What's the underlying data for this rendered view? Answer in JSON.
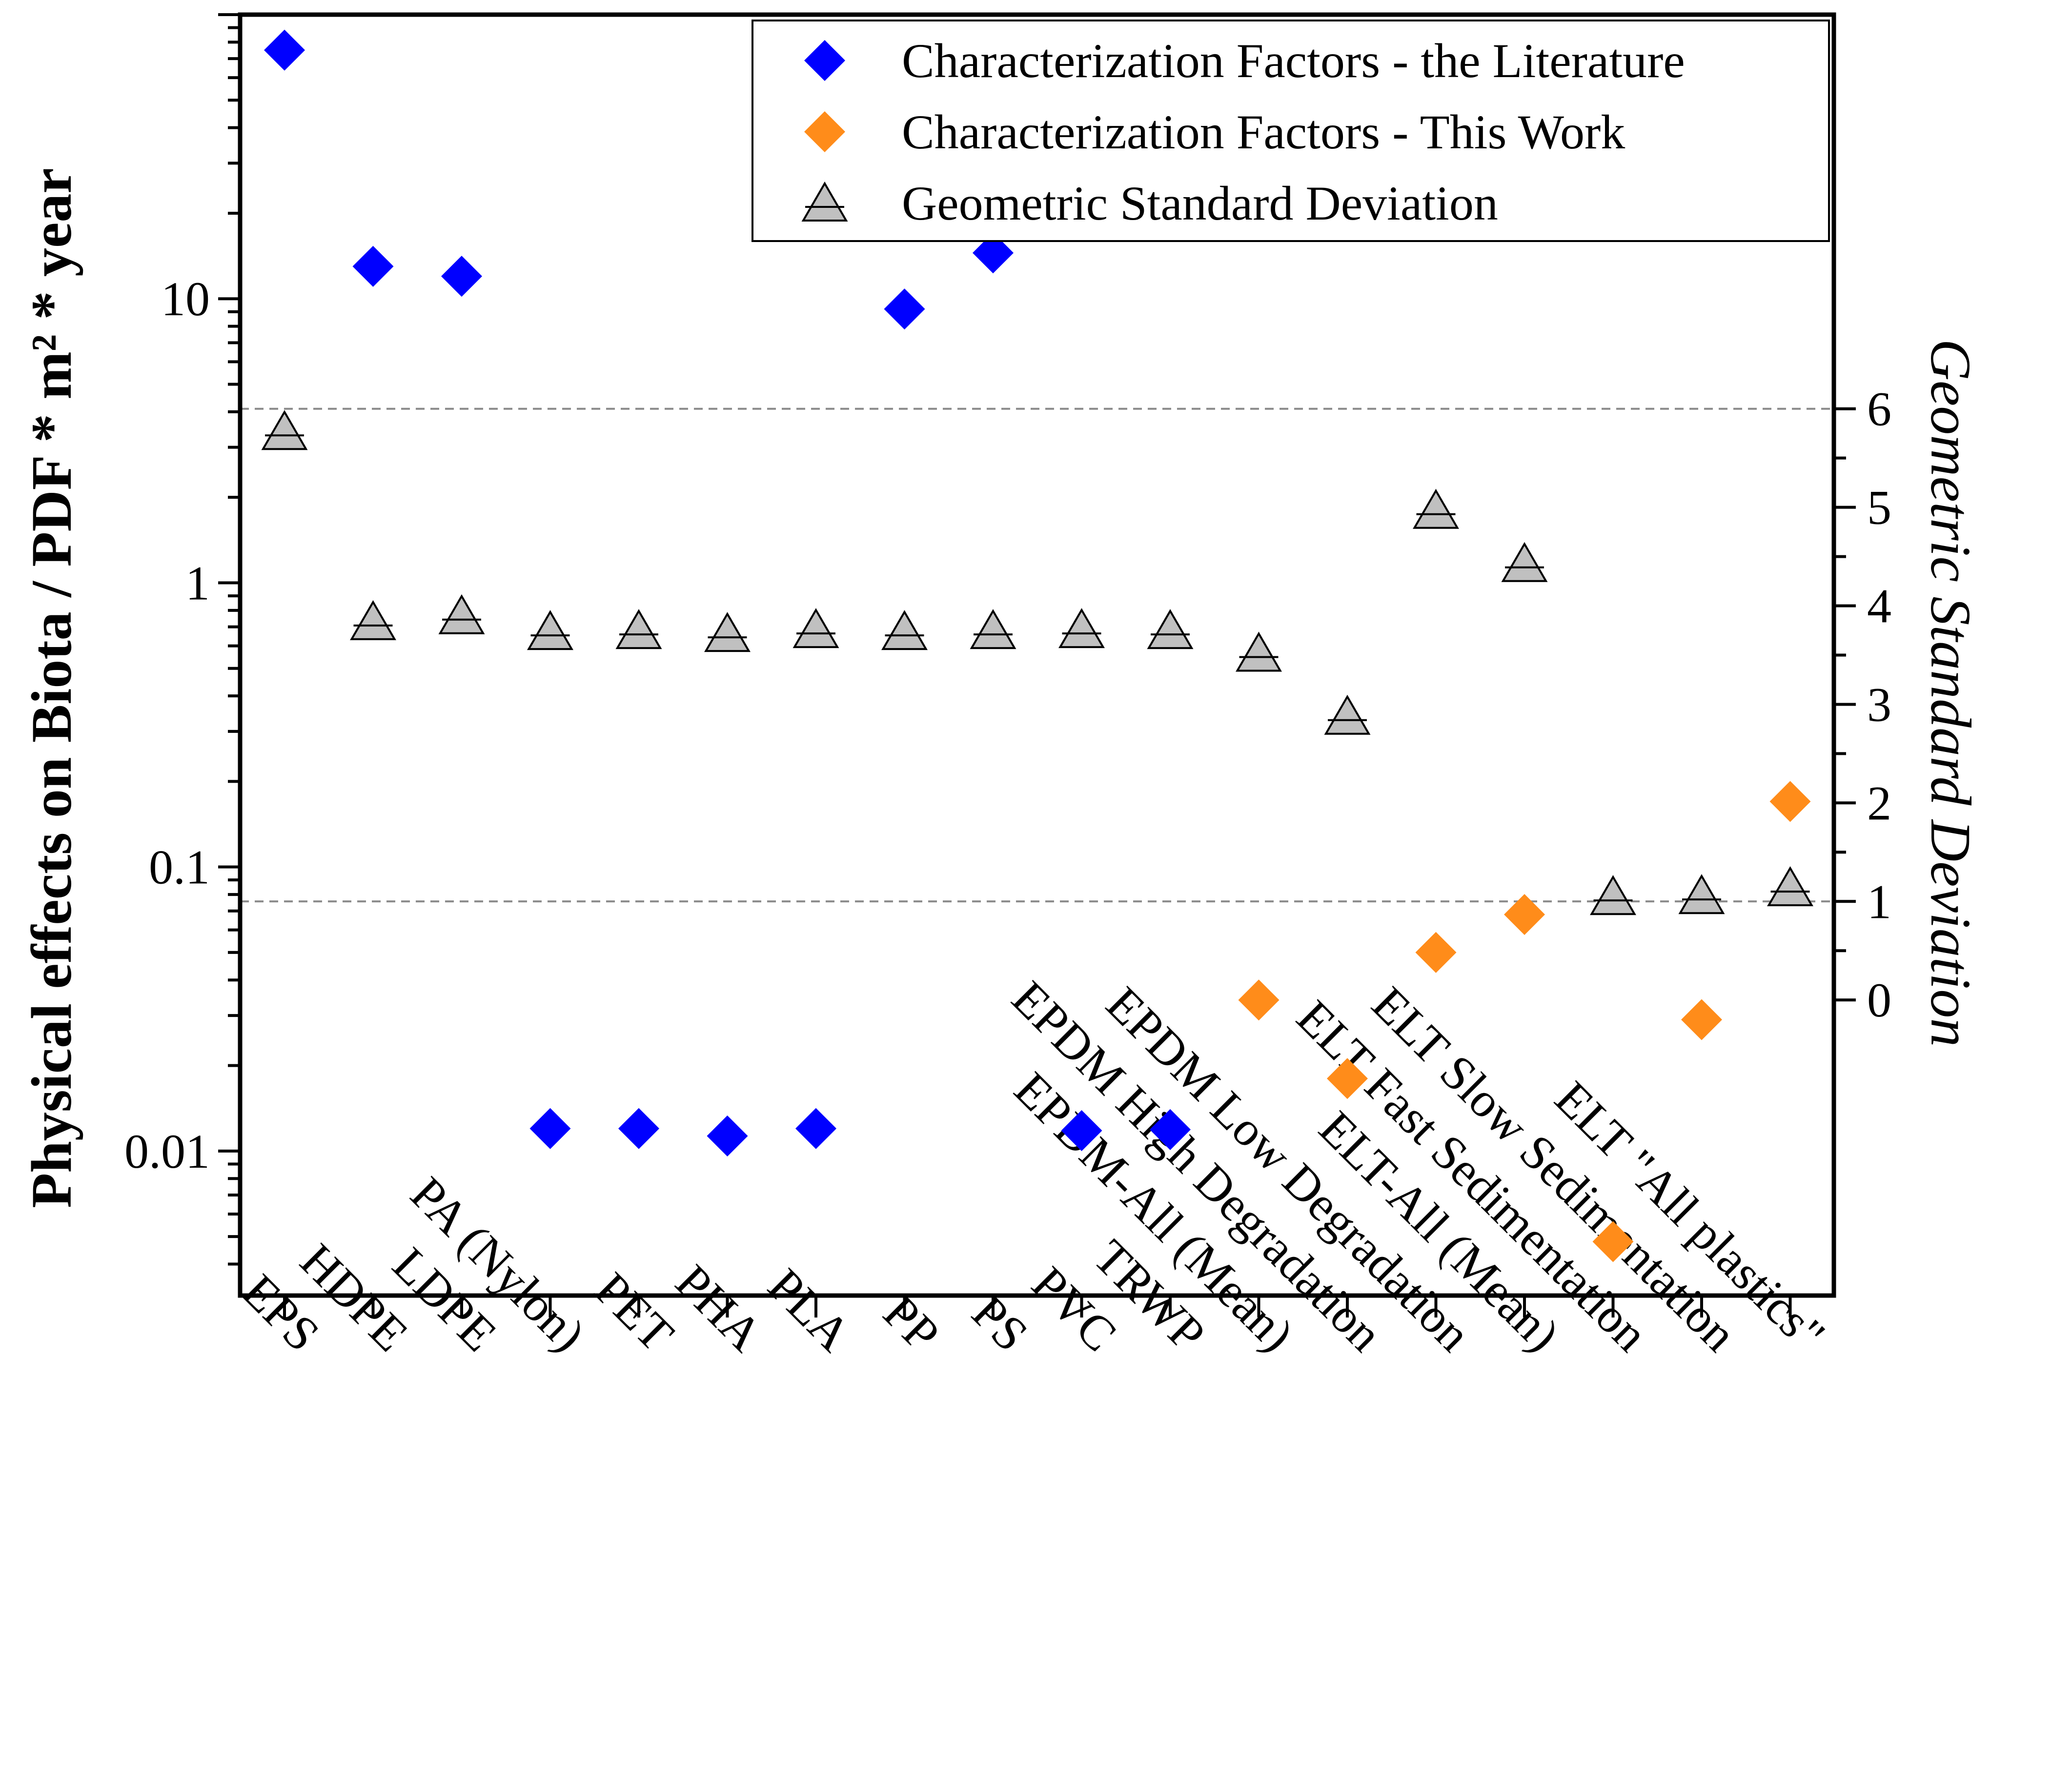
{
  "chart_data": {
    "type": "scatter",
    "categories": [
      "EPS",
      "HDPE",
      "LDPE",
      "PA (Nylon)",
      "PET",
      "PHA",
      "PLA",
      "PP",
      "PS",
      "PVC",
      "TRWP",
      "EPDM-All (Mean)",
      "EPDM High Degradation",
      "EPDM Low Degradation",
      "ELT-All (Mean)",
      "ELT Fast Sedimentation",
      "ELT Slow Sedimentation",
      "ELT \"All plastics\""
    ],
    "left_axis": {
      "label": "Physical effects on Biota / PDF * m² * year",
      "scale": "log",
      "range": [
        0.0031,
        100
      ],
      "ticks": [
        0.01,
        0.1,
        1,
        10
      ],
      "tick_labels": [
        "0.01",
        "0.1",
        "1",
        "10"
      ]
    },
    "right_axis": {
      "label": "Geometric Standard Deviation",
      "scale": "linear",
      "range": [
        -3.0,
        10.0
      ],
      "ticks": [
        0,
        1,
        2,
        3,
        4,
        5,
        6
      ],
      "tick_labels": [
        "0",
        "1",
        "2",
        "3",
        "4",
        "5",
        "6"
      ],
      "reference_lines": [
        1,
        6
      ]
    },
    "series": [
      {
        "name": "Characterization Factors - the Literature",
        "axis": "left",
        "marker": "diamond",
        "color": "#0000ff",
        "values": [
          75,
          13,
          12,
          0.012,
          0.012,
          0.0113,
          0.012,
          9.2,
          14.5,
          0.0118,
          0.0119,
          null,
          null,
          null,
          null,
          null,
          null,
          null
        ]
      },
      {
        "name": "Characterization Factors - This Work",
        "axis": "left",
        "marker": "diamond",
        "color": "#ff8c1a",
        "values": [
          null,
          null,
          null,
          null,
          null,
          null,
          null,
          null,
          null,
          null,
          null,
          0.034,
          0.018,
          0.05,
          0.068,
          0.0048,
          0.029,
          0.17
        ]
      },
      {
        "name": "Geometric Standard Deviation",
        "axis": "right",
        "marker": "triangle",
        "color": "#c0c0c0",
        "values": [
          5.73,
          3.8,
          3.86,
          3.7,
          3.71,
          3.68,
          3.72,
          3.7,
          3.71,
          3.72,
          3.71,
          3.48,
          2.84,
          4.93,
          4.39,
          1.01,
          1.02,
          1.1
        ]
      }
    ],
    "legend": {
      "position": "top-right",
      "entries": [
        "Characterization Factors - the Literature",
        "Characterization Factors - This Work",
        "Geometric Standard Deviation"
      ]
    }
  }
}
